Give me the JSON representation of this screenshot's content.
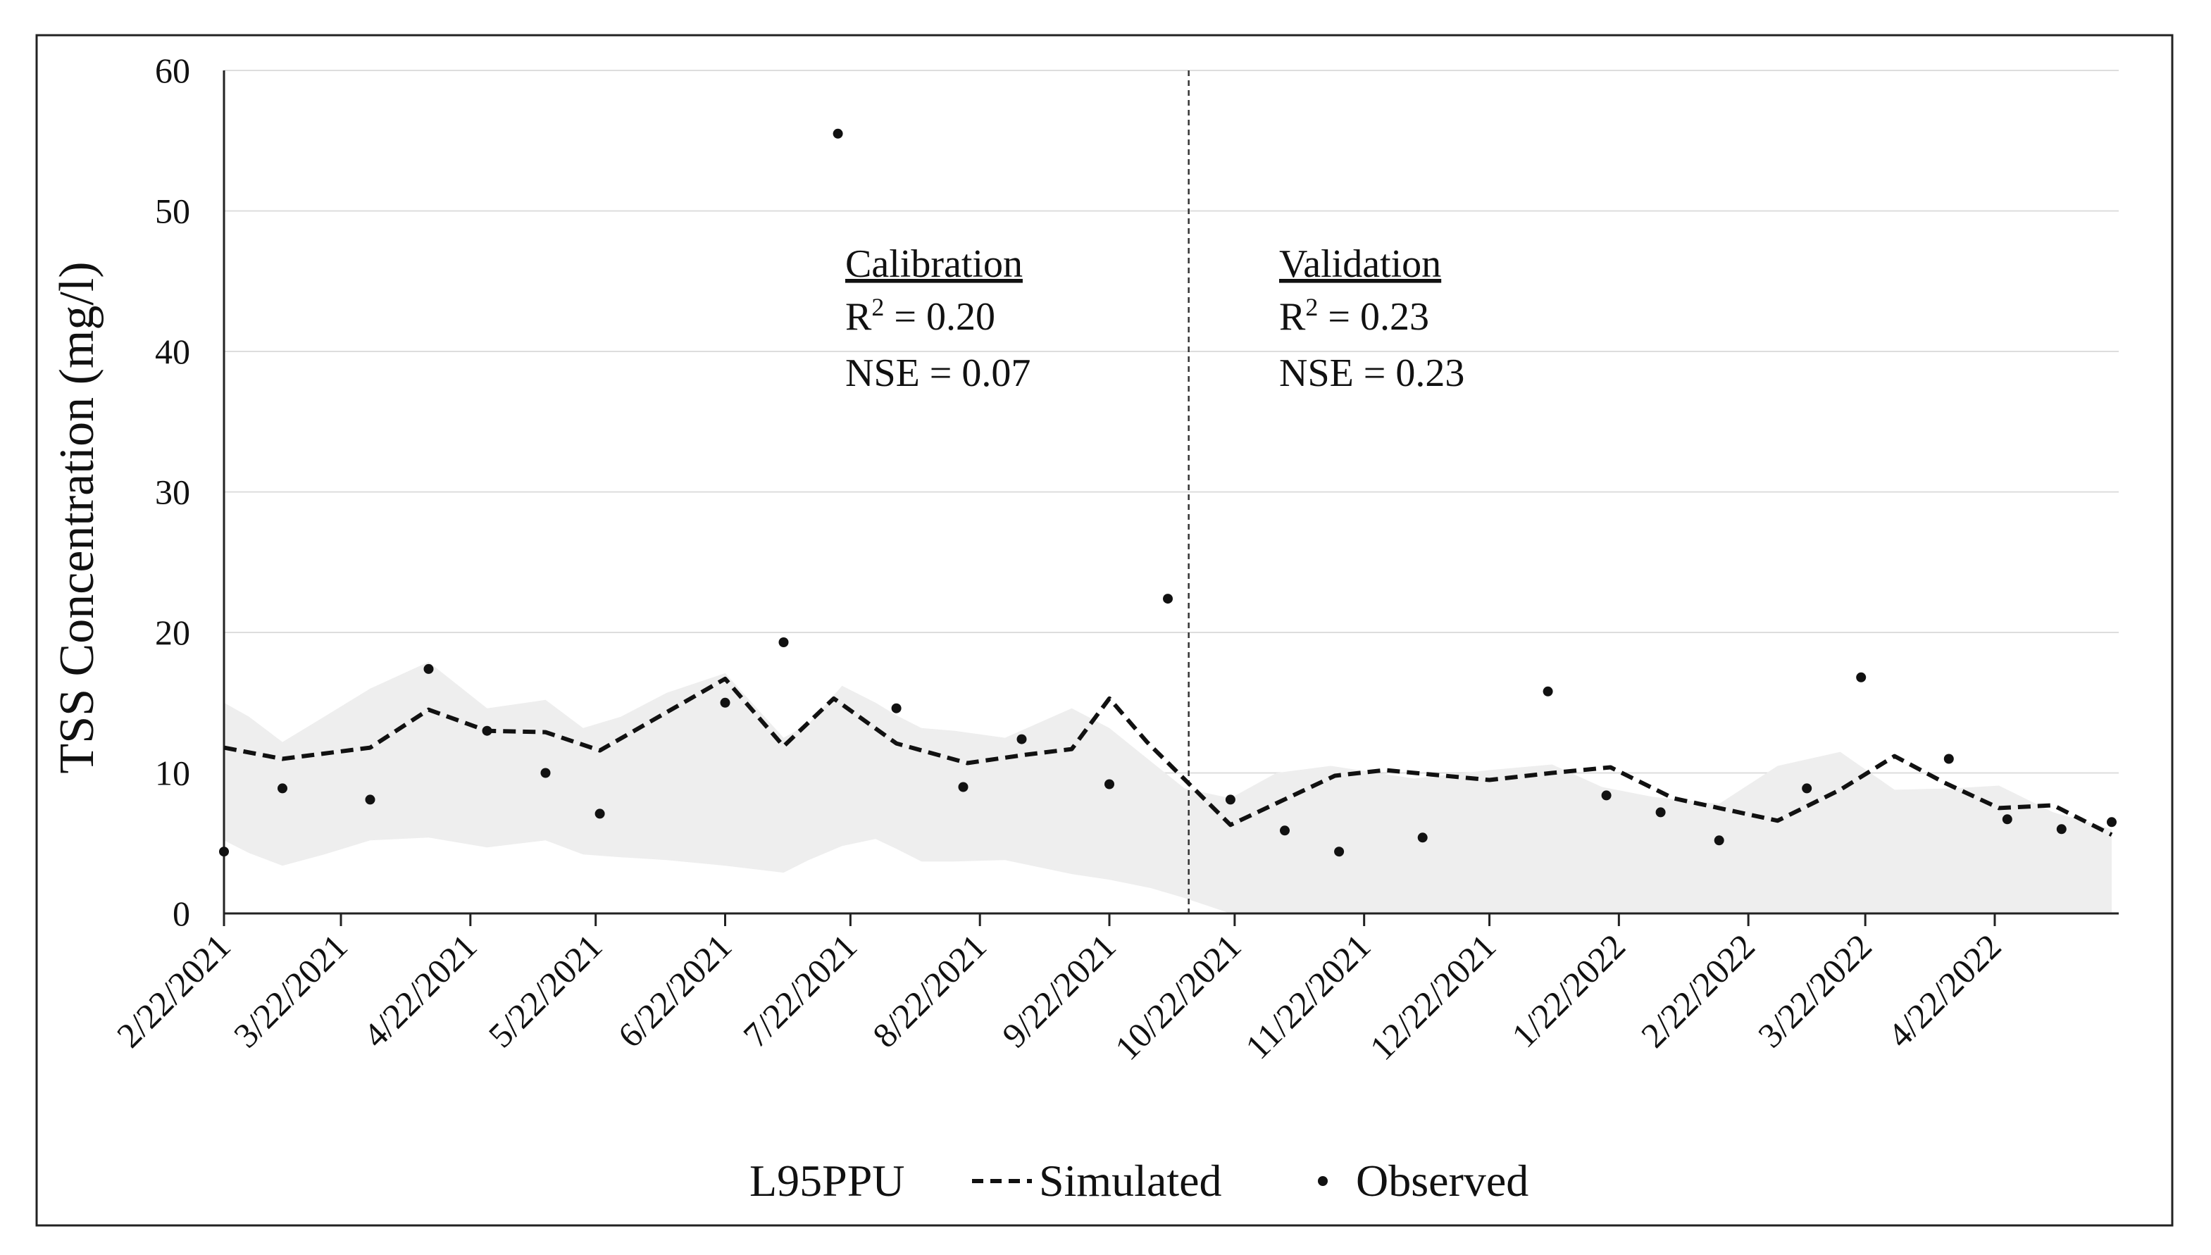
{
  "chart_data": {
    "type": "line",
    "ylabel": "TSS Concentration (mg/l)",
    "xlabel": "",
    "ylim": [
      0,
      60
    ],
    "yticks": [
      "0",
      "10",
      "20",
      "30",
      "40",
      "50",
      "60"
    ],
    "x_day_range": [
      0,
      452
    ],
    "x_tick_labels": [
      "2/22/2021",
      "3/22/2021",
      "4/22/2021",
      "5/22/2021",
      "6/22/2021",
      "7/22/2021",
      "8/22/2021",
      "9/22/2021",
      "10/22/2021",
      "11/22/2021",
      "12/22/2021",
      "1/22/2022",
      "2/22/2022",
      "3/22/2022",
      "4/22/2022"
    ],
    "x_tick_days": [
      0,
      28,
      59,
      89,
      120,
      150,
      181,
      212,
      242,
      273,
      303,
      334,
      365,
      393,
      424
    ],
    "split_day": 231,
    "grid": "horizontal",
    "series": [
      {
        "name": "L95PPU",
        "kind": "band",
        "color": "#eeeeee",
        "x": [
          0,
          6,
          14,
          24,
          35,
          49,
          63,
          77,
          86,
          95,
          106,
          120,
          134,
          140,
          148,
          156,
          161,
          167,
          175,
          187,
          203,
          212,
          222,
          230,
          241,
          252,
          265,
          285,
          303,
          318,
          330,
          342,
          358,
          372,
          387,
          400,
          414,
          425,
          438,
          452
        ],
        "upper": [
          15,
          14,
          12.2,
          14,
          16,
          17.9,
          14.6,
          15.2,
          13.2,
          14,
          15.7,
          17.1,
          12.5,
          13.5,
          16.2,
          15,
          14.1,
          13.2,
          13,
          12.5,
          14.6,
          13.2,
          10.8,
          8.9,
          8.2,
          10,
          10.5,
          9.6,
          10.2,
          10.6,
          9,
          8.3,
          7.8,
          10.5,
          11.5,
          8.8,
          8.9,
          9.1,
          7.2,
          6
        ],
        "lower": [
          5.2,
          4.3,
          3.4,
          4.2,
          5.2,
          5.4,
          4.7,
          5.2,
          4.2,
          4,
          3.8,
          3.4,
          2.9,
          3.8,
          4.8,
          5.3,
          4.6,
          3.7,
          3.7,
          3.8,
          2.8,
          2.4,
          1.8,
          1.1,
          0,
          0,
          0,
          0,
          0,
          0,
          0,
          0,
          0,
          0,
          0,
          0,
          0,
          0,
          0,
          0
        ]
      },
      {
        "name": "Simulated",
        "kind": "line",
        "style": "dashed",
        "color": "#111111",
        "x": [
          0,
          14,
          35,
          49,
          63,
          77,
          90,
          120,
          134,
          146,
          161,
          178,
          192,
          203,
          212,
          221,
          241,
          266,
          278,
          303,
          318,
          332,
          347,
          358,
          372,
          387,
          400,
          412,
          425,
          438,
          452
        ],
        "y": [
          11.8,
          11,
          11.8,
          14.5,
          13,
          12.9,
          11.6,
          16.7,
          11.9,
          15.3,
          12.1,
          10.7,
          11.3,
          11.7,
          15.3,
          12.2,
          6.3,
          9.8,
          10.2,
          9.5,
          10,
          10.4,
          8.2,
          7.5,
          6.6,
          8.8,
          11.2,
          9.3,
          7.5,
          7.7,
          5.6
        ]
      },
      {
        "name": "Observed",
        "kind": "scatter",
        "color": "#111111",
        "x": [
          0,
          14,
          35,
          49,
          63,
          77,
          90,
          120,
          134,
          147,
          161,
          177,
          191,
          212,
          226,
          241,
          254,
          267,
          287,
          317,
          331,
          344,
          358,
          379,
          392,
          413,
          427,
          440,
          452
        ],
        "y": [
          4.4,
          8.9,
          8.1,
          17.4,
          13,
          10,
          7.1,
          15,
          19.3,
          55.5,
          14.6,
          9,
          12.4,
          9.2,
          22.4,
          8.1,
          5.9,
          4.4,
          5.4,
          15.8,
          8.4,
          7.2,
          5.2,
          8.9,
          16.8,
          11,
          6.7,
          6,
          6.5
        ]
      }
    ],
    "annotations": {
      "calibration": {
        "title": "Calibration",
        "r2_label": "R",
        "r2_sup": "2",
        "r2_value": " = 0.20",
        "nse": "NSE = 0.07"
      },
      "validation": {
        "title": "Validation",
        "r2_label": "R",
        "r2_sup": "2",
        "r2_value": " = 0.23",
        "nse": "NSE = 0.23"
      }
    },
    "legend": {
      "position": "bottom",
      "items": [
        {
          "label": "L95PPU",
          "marker": "none"
        },
        {
          "label": "Simulated",
          "marker": "dashed-line"
        },
        {
          "label": "Observed",
          "marker": "dot"
        }
      ]
    }
  }
}
